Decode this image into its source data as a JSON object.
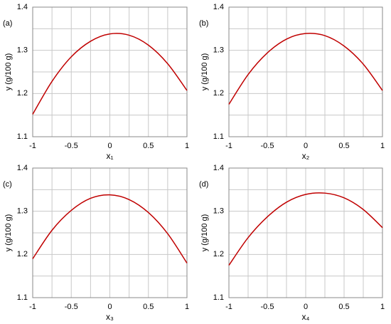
{
  "chart_data": [
    {
      "type": "line",
      "panel_label": "(a)",
      "xlabel": "x₁",
      "ylabel": "y (g/100 g)",
      "x": [
        -1,
        -0.75,
        -0.5,
        -0.25,
        0,
        0.25,
        0.5,
        0.75,
        1
      ],
      "values": [
        1.152,
        1.228,
        1.285,
        1.321,
        1.338,
        1.335,
        1.312,
        1.269,
        1.207
      ],
      "color": "#c00000",
      "xlim": [
        -1,
        1
      ],
      "ylim": [
        1.1,
        1.4
      ],
      "xticks": [
        -1,
        -0.5,
        0,
        0.5,
        1
      ],
      "yticks": [
        1.1,
        1.2,
        1.3,
        1.4
      ],
      "grid": true
    },
    {
      "type": "line",
      "panel_label": "(b)",
      "xlabel": "x₂",
      "ylabel": "y (g/100 g)",
      "x": [
        -1,
        -0.75,
        -0.5,
        -0.25,
        0,
        0.25,
        0.5,
        0.75,
        1
      ],
      "values": [
        1.175,
        1.244,
        1.294,
        1.326,
        1.339,
        1.334,
        1.31,
        1.268,
        1.207
      ],
      "color": "#c00000",
      "xlim": [
        -1,
        1
      ],
      "ylim": [
        1.1,
        1.4
      ],
      "xticks": [
        -1,
        -0.5,
        0,
        0.5,
        1
      ],
      "yticks": [
        1.1,
        1.2,
        1.3,
        1.4
      ],
      "grid": true
    },
    {
      "type": "line",
      "panel_label": "(c)",
      "xlabel": "x₃",
      "ylabel": "y (g/100 g)",
      "x": [
        -1,
        -0.75,
        -0.5,
        -0.25,
        0,
        0.25,
        0.5,
        0.75,
        1
      ],
      "values": [
        1.19,
        1.256,
        1.302,
        1.33,
        1.338,
        1.327,
        1.297,
        1.248,
        1.18
      ],
      "color": "#c00000",
      "xlim": [
        -1,
        1
      ],
      "ylim": [
        1.1,
        1.4
      ],
      "xticks": [
        -1,
        -0.5,
        0,
        0.5,
        1
      ],
      "yticks": [
        1.1,
        1.2,
        1.3,
        1.4
      ],
      "grid": true
    },
    {
      "type": "line",
      "panel_label": "(d)",
      "xlabel": "x₄",
      "ylabel": "y (g/100 g)",
      "x": [
        -1,
        -0.75,
        -0.5,
        -0.25,
        0,
        0.25,
        0.5,
        0.75,
        1
      ],
      "values": [
        1.175,
        1.239,
        1.287,
        1.321,
        1.339,
        1.342,
        1.331,
        1.304,
        1.262
      ],
      "color": "#c00000",
      "xlim": [
        -1,
        1
      ],
      "ylim": [
        1.1,
        1.4
      ],
      "xticks": [
        -1,
        -0.5,
        0,
        0.5,
        1
      ],
      "yticks": [
        1.1,
        1.2,
        1.3,
        1.4
      ],
      "grid": true
    }
  ]
}
